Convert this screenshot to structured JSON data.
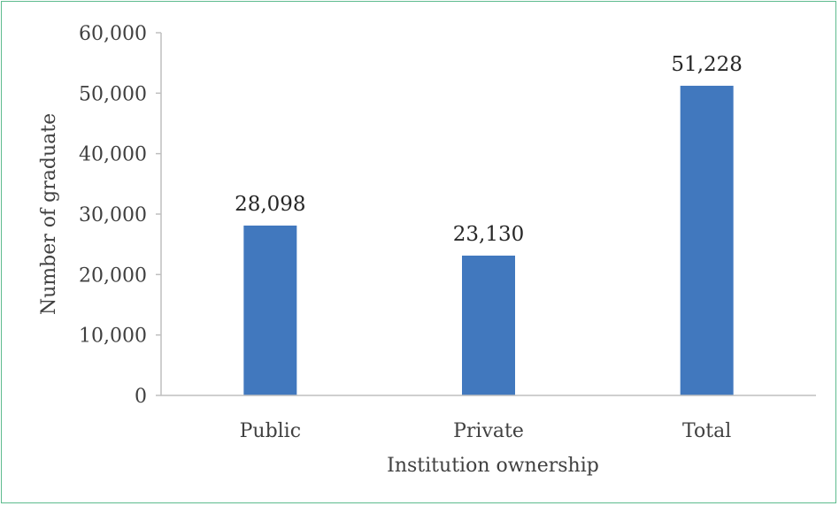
{
  "chart_data": {
    "type": "bar",
    "title": "",
    "xlabel": "Institution ownership",
    "ylabel": "Number of graduate",
    "categories": [
      "Public",
      "Private",
      "Total"
    ],
    "values": [
      28098,
      23130,
      51228
    ],
    "data_labels": [
      "28,098",
      "23,130",
      "51,228"
    ],
    "ylim": [
      0,
      60000
    ],
    "yticks": [
      0,
      10000,
      20000,
      30000,
      40000,
      50000,
      60000
    ],
    "ytick_labels": [
      "0",
      "10,000",
      "20,000",
      "30,000",
      "40,000",
      "50,000",
      "60,000"
    ],
    "grid": false,
    "legend": "none",
    "bar_color": "#4178be",
    "frame_color": "#5dbb8e"
  }
}
